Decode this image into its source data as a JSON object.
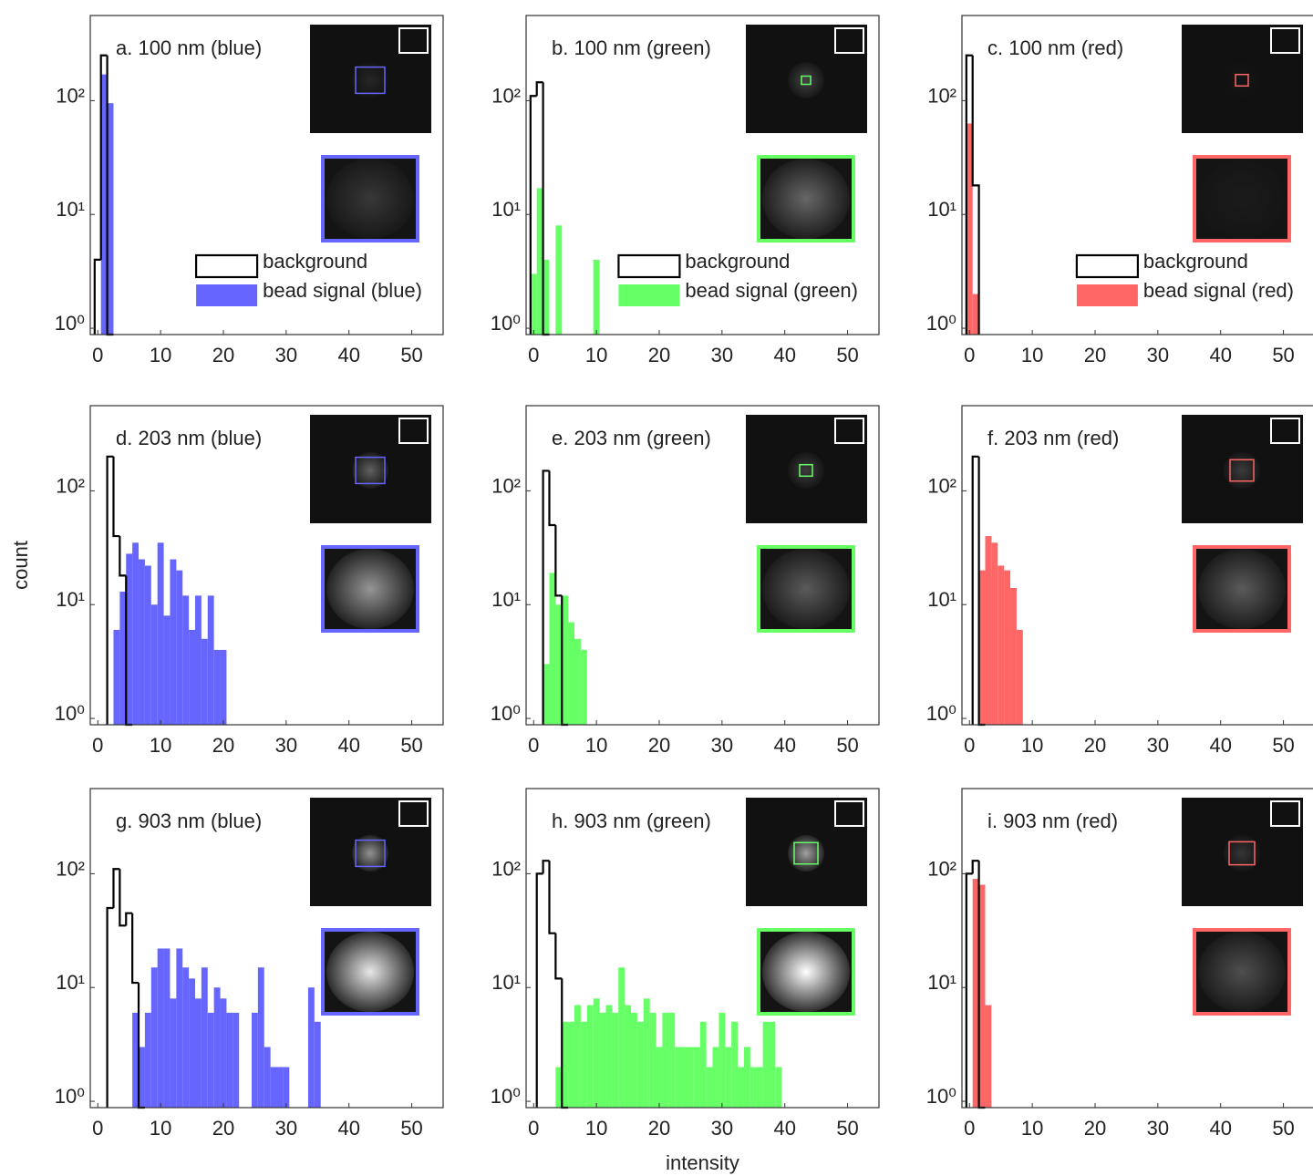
{
  "chart_data": [
    {
      "type": "histogram",
      "title": "a. 100 nm (blue)",
      "bins": [
        -0.5,
        0.5,
        1.5,
        2.5
      ],
      "series": [
        {
          "name": "background",
          "color": "#000000",
          "style": "step",
          "values": [
            4,
            250,
            0
          ]
        },
        {
          "name": "bead signal (blue)",
          "color": "#6666ff",
          "style": "bar",
          "values": [
            0,
            170,
            95
          ]
        }
      ],
      "xlim": [
        -1.2,
        55
      ],
      "xticks": [
        0,
        10,
        20,
        30,
        40,
        50
      ],
      "ylim": [
        0.88,
        560
      ],
      "log_y": true,
      "yticks": [
        {
          "value": 1,
          "label": "10⁰"
        },
        {
          "value": 10,
          "label": "10¹"
        },
        {
          "value": 100,
          "label": "10²"
        }
      ],
      "legend": "lower right"
    },
    {
      "type": "histogram",
      "title": "b. 100 nm (green)",
      "bins": [
        -0.5,
        0.5,
        1.5,
        2.5,
        3.5,
        4.5,
        5.5,
        6.5,
        7.5,
        8.5,
        9.5,
        10.5
      ],
      "series": [
        {
          "name": "background",
          "color": "#000000",
          "style": "step",
          "values": [
            110,
            145,
            0,
            0,
            0,
            0,
            0,
            0,
            0,
            0,
            0
          ]
        },
        {
          "name": "bead signal (green)",
          "color": "#66ff66",
          "style": "bar",
          "values": [
            3,
            17,
            4,
            0,
            8,
            0,
            0,
            0,
            0,
            0,
            4
          ]
        }
      ],
      "xlim": [
        -1.2,
        55
      ],
      "xticks": [
        0,
        10,
        20,
        30,
        40,
        50
      ],
      "ylim": [
        0.88,
        560
      ],
      "log_y": true,
      "yticks": [
        {
          "value": 1,
          "label": "10⁰"
        },
        {
          "value": 10,
          "label": "10¹"
        },
        {
          "value": 100,
          "label": "10²"
        }
      ],
      "legend": "lower right"
    },
    {
      "type": "histogram",
      "title": "c. 100 nm (red)",
      "bins": [
        -0.5,
        0.5,
        1.5
      ],
      "series": [
        {
          "name": "background",
          "color": "#000000",
          "style": "step",
          "values": [
            250,
            18
          ]
        },
        {
          "name": "bead signal (red)",
          "color": "#ff6666",
          "style": "bar",
          "values": [
            63,
            2
          ]
        }
      ],
      "xlim": [
        -1.2,
        55
      ],
      "xticks": [
        0,
        10,
        20,
        30,
        40,
        50
      ],
      "ylim": [
        0.88,
        560
      ],
      "log_y": true,
      "yticks": [
        {
          "value": 1,
          "label": "10⁰"
        },
        {
          "value": 10,
          "label": "10¹"
        },
        {
          "value": 100,
          "label": "10²"
        }
      ],
      "legend": "lower right"
    },
    {
      "type": "histogram",
      "title": "d. 203 nm (blue)",
      "ylabel": "count",
      "bins": [
        -0.5,
        0.5,
        1.5,
        2.5,
        3.5,
        4.5,
        5.5,
        6.5,
        7.5,
        8.5,
        9.5,
        10.5,
        11.5,
        12.5,
        13.5,
        14.5,
        15.5,
        16.5,
        17.5,
        18.5,
        19.5,
        20.5
      ],
      "series": [
        {
          "color": "#000000",
          "style": "step",
          "values": [
            0,
            0,
            200,
            40,
            18,
            0,
            0,
            0,
            0,
            0,
            0,
            0,
            0,
            0,
            0,
            0,
            0,
            0,
            0,
            0,
            0
          ]
        },
        {
          "color": "#6666ff",
          "style": "bar",
          "values": [
            0,
            0,
            0,
            6,
            13,
            28,
            35,
            25,
            22,
            10,
            35,
            8,
            25,
            20,
            12,
            6,
            12,
            5,
            12,
            4,
            4
          ]
        }
      ],
      "xlim": [
        -1.2,
        55
      ],
      "xticks": [
        0,
        10,
        20,
        30,
        40,
        50
      ],
      "ylim": [
        0.88,
        560
      ],
      "log_y": true,
      "yticks": [
        {
          "value": 1,
          "label": "10⁰"
        },
        {
          "value": 10,
          "label": "10¹"
        },
        {
          "value": 100,
          "label": "10²"
        }
      ]
    },
    {
      "type": "histogram",
      "title": "e. 203 nm (green)",
      "bins": [
        -0.5,
        0.5,
        1.5,
        2.5,
        3.5,
        4.5,
        5.5,
        6.5,
        7.5,
        8.5
      ],
      "series": [
        {
          "color": "#000000",
          "style": "step",
          "values": [
            0,
            0,
            150,
            50,
            12,
            0,
            0,
            0,
            0
          ]
        },
        {
          "color": "#66ff66",
          "style": "bar",
          "values": [
            0,
            0,
            3,
            19,
            10,
            12,
            7,
            5,
            4
          ]
        }
      ],
      "xlim": [
        -1.2,
        55
      ],
      "xticks": [
        0,
        10,
        20,
        30,
        40,
        50
      ],
      "ylim": [
        0.88,
        560
      ],
      "log_y": true,
      "yticks": [
        {
          "value": 1,
          "label": "10⁰"
        },
        {
          "value": 10,
          "label": "10¹"
        },
        {
          "value": 100,
          "label": "10²"
        }
      ]
    },
    {
      "type": "histogram",
      "title": "f. 203 nm (red)",
      "bins": [
        -0.5,
        0.5,
        1.5,
        2.5,
        3.5,
        4.5,
        5.5,
        6.5,
        7.5,
        8.5
      ],
      "series": [
        {
          "color": "#000000",
          "style": "step",
          "values": [
            0,
            200,
            0,
            0,
            0,
            0,
            0,
            0,
            0
          ]
        },
        {
          "color": "#ff6666",
          "style": "bar",
          "values": [
            0,
            0,
            20,
            40,
            35,
            22,
            20,
            14,
            6
          ]
        }
      ],
      "xlim": [
        -1.2,
        55
      ],
      "xticks": [
        0,
        10,
        20,
        30,
        40,
        50
      ],
      "ylim": [
        0.88,
        560
      ],
      "log_y": true,
      "yticks": [
        {
          "value": 1,
          "label": "10⁰"
        },
        {
          "value": 10,
          "label": "10¹"
        },
        {
          "value": 100,
          "label": "10²"
        }
      ]
    },
    {
      "type": "histogram",
      "title": "g. 903 nm (blue)",
      "bins": [
        -0.5,
        0.5,
        1.5,
        2.5,
        3.5,
        4.5,
        5.5,
        6.5,
        7.5,
        8.5,
        9.5,
        10.5,
        11.5,
        12.5,
        13.5,
        14.5,
        15.5,
        16.5,
        17.5,
        18.5,
        19.5,
        20.5,
        21.5,
        22.5,
        23.5,
        24.5,
        25.5,
        26.5,
        27.5,
        28.5,
        29.5,
        30.5,
        31.5,
        32.5,
        33.5,
        34.5,
        35.5
      ],
      "series": [
        {
          "color": "#000000",
          "style": "step",
          "values": [
            0,
            0,
            50,
            110,
            35,
            45,
            11,
            0,
            0,
            0,
            0,
            0,
            0,
            0,
            0,
            0,
            0,
            0,
            0,
            0,
            0,
            0,
            0,
            0,
            0,
            0,
            0,
            0,
            0,
            0,
            0,
            0,
            0,
            0,
            0,
            0
          ]
        },
        {
          "color": "#6666ff",
          "style": "bar",
          "values": [
            0,
            0,
            0,
            0,
            0,
            0,
            6,
            3,
            6,
            15,
            22,
            22,
            8,
            22,
            15,
            12,
            8,
            15,
            6,
            10,
            8,
            6,
            6,
            0,
            0,
            6,
            15,
            3,
            2,
            2,
            2,
            0,
            0,
            0,
            10,
            5
          ]
        }
      ],
      "xlim": [
        -1.2,
        55
      ],
      "xticks": [
        0,
        10,
        20,
        30,
        40,
        50
      ],
      "ylim": [
        0.88,
        560
      ],
      "log_y": true,
      "yticks": [
        {
          "value": 1,
          "label": "10⁰"
        },
        {
          "value": 10,
          "label": "10¹"
        },
        {
          "value": 100,
          "label": "10²"
        }
      ]
    },
    {
      "type": "histogram",
      "title": "h. 903 nm (green)",
      "xlabel": "intensity",
      "bins": [
        -0.5,
        0.5,
        1.5,
        2.5,
        3.5,
        4.5,
        5.5,
        6.5,
        7.5,
        8.5,
        9.5,
        10.5,
        11.5,
        12.5,
        13.5,
        14.5,
        15.5,
        16.5,
        17.5,
        18.5,
        19.5,
        20.5,
        21.5,
        22.5,
        23.5,
        24.5,
        25.5,
        26.5,
        27.5,
        28.5,
        29.5,
        30.5,
        31.5,
        32.5,
        33.5,
        34.5,
        35.5,
        36.5,
        37.5,
        38.5,
        39.5
      ],
      "series": [
        {
          "color": "#000000",
          "style": "step",
          "values": [
            0,
            100,
            130,
            30,
            12,
            0,
            0,
            0,
            0,
            0,
            0,
            0,
            0,
            0,
            0,
            0,
            0,
            0,
            0,
            0,
            0,
            0,
            0,
            0,
            0,
            0,
            0,
            0,
            0,
            0,
            0,
            0,
            0,
            0,
            0,
            0,
            0,
            0,
            0,
            0
          ]
        },
        {
          "color": "#66ff66",
          "style": "bar",
          "values": [
            0,
            0,
            0,
            0,
            2,
            5,
            5,
            7,
            5,
            7,
            8,
            6,
            7,
            6,
            15,
            7,
            6,
            5,
            8,
            6,
            3,
            6,
            6,
            3,
            3,
            3,
            3,
            5,
            2,
            3,
            6,
            3,
            5,
            2,
            3,
            2,
            2,
            5,
            5,
            2
          ]
        }
      ],
      "xlim": [
        -1.2,
        55
      ],
      "xticks": [
        0,
        10,
        20,
        30,
        40,
        50
      ],
      "ylim": [
        0.88,
        560
      ],
      "log_y": true,
      "yticks": [
        {
          "value": 1,
          "label": "10⁰"
        },
        {
          "value": 10,
          "label": "10¹"
        },
        {
          "value": 100,
          "label": "10²"
        }
      ]
    },
    {
      "type": "histogram",
      "title": "i. 903 nm (red)",
      "bins": [
        -0.5,
        0.5,
        1.5,
        2.5,
        3.5
      ],
      "series": [
        {
          "color": "#000000",
          "style": "step",
          "values": [
            100,
            130,
            0,
            0
          ]
        },
        {
          "color": "#ff6666",
          "style": "bar",
          "values": [
            0,
            90,
            80,
            7
          ]
        }
      ],
      "xlim": [
        -1.2,
        55
      ],
      "xticks": [
        0,
        10,
        20,
        30,
        40,
        50
      ],
      "ylim": [
        0.88,
        560
      ],
      "log_y": true,
      "yticks": [
        {
          "value": 1,
          "label": "10⁰"
        },
        {
          "value": 10,
          "label": "10¹"
        },
        {
          "value": 100,
          "label": "10²"
        }
      ]
    }
  ]
}
